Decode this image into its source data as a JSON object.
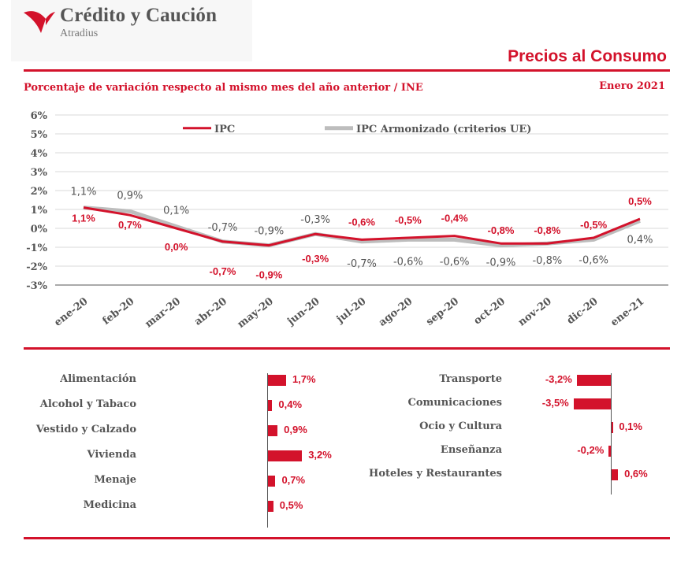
{
  "brand": {
    "name": "Crédito y Caución",
    "sub": "Atradius"
  },
  "header": {
    "title": "Precios al Consumo",
    "subtitle": "Porcentaje de variación respecto al mismo mes del año anterior / INE",
    "period": "Enero 2021"
  },
  "colors": {
    "accent": "#d3122b",
    "ipca": "#bdbdbd",
    "text": "#555555"
  },
  "chart_data": {
    "type": "line",
    "categories": [
      "ene-20",
      "feb-20",
      "mar-20",
      "abr-20",
      "may-20",
      "jun-20",
      "jul-20",
      "ago-20",
      "sep-20",
      "oct-20",
      "nov-20",
      "dic-20",
      "ene-21"
    ],
    "ylim": [
      -3,
      6
    ],
    "yticks": [
      "6%",
      "5%",
      "4%",
      "3%",
      "2%",
      "1%",
      "0%",
      "-1%",
      "-2%",
      "-3%"
    ],
    "grid": true,
    "legend_position": "top",
    "series": [
      {
        "name": "IPC",
        "color": "#d3122b",
        "values": [
          1.1,
          0.7,
          0.0,
          -0.7,
          -0.9,
          -0.3,
          -0.6,
          -0.5,
          -0.4,
          -0.8,
          -0.8,
          -0.5,
          0.5
        ],
        "labels": [
          "1,1%",
          "0,7%",
          "0,0%",
          "-0,7%",
          "-0,9%",
          "-0,3%",
          "-0,6%",
          "-0,5%",
          "-0,4%",
          "-0,8%",
          "-0,8%",
          "-0,5%",
          "0,5%"
        ]
      },
      {
        "name": "IPC Armonizado (criterios UE)",
        "color": "#bdbdbd",
        "values": [
          1.1,
          0.9,
          0.1,
          -0.7,
          -0.9,
          -0.3,
          -0.7,
          -0.6,
          -0.6,
          -0.9,
          -0.8,
          -0.6,
          0.4
        ],
        "labels": [
          "1,1%",
          "0,9%",
          "0,1%",
          "-0,7%",
          "-0,9%",
          "-0,3%",
          "-0,7%",
          "-0,6%",
          "-0,6%",
          "-0,9%",
          "-0,8%",
          "-0,6%",
          "0,4%"
        ]
      }
    ]
  },
  "components_left": [
    {
      "label": "Alimentación",
      "value": 1.7,
      "text": "1,7%"
    },
    {
      "label": "Alcohol y Tabaco",
      "value": 0.4,
      "text": "0,4%"
    },
    {
      "label": "Vestido y Calzado",
      "value": 0.9,
      "text": "0,9%"
    },
    {
      "label": "Vivienda",
      "value": 3.2,
      "text": "3,2%"
    },
    {
      "label": "Menaje",
      "value": 0.7,
      "text": "0,7%"
    },
    {
      "label": "Medicina",
      "value": 0.5,
      "text": "0,5%"
    }
  ],
  "components_right": [
    {
      "label": "Transporte",
      "value": -3.2,
      "text": "-3,2%"
    },
    {
      "label": "Comunicaciones",
      "value": -3.5,
      "text": "-3,5%"
    },
    {
      "label": "Ocio y Cultura",
      "value": 0.1,
      "text": "0,1%"
    },
    {
      "label": "Enseñanza",
      "value": -0.2,
      "text": "-0,2%"
    },
    {
      "label": "Hoteles y Restaurantes",
      "value": 0.6,
      "text": "0,6%"
    }
  ]
}
